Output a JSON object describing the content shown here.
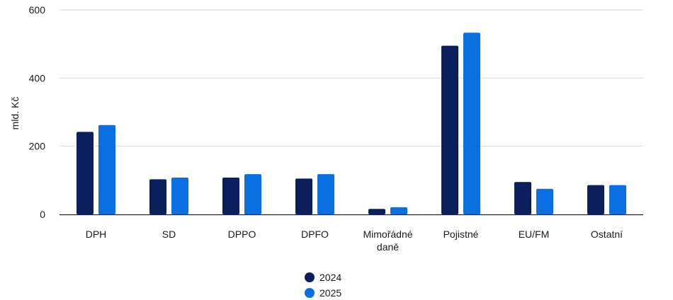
{
  "chart_data": {
    "type": "bar",
    "ylabel": "mld. Kč",
    "ylim": [
      0,
      600
    ],
    "yticks": [
      0,
      200,
      400,
      600
    ],
    "grid": true,
    "legend_position": "bottom-center",
    "categories": [
      [
        "DPH"
      ],
      [
        "SD"
      ],
      [
        "DPPO"
      ],
      [
        "DPFO"
      ],
      [
        "Mimořádné",
        "daně"
      ],
      [
        "Pojistné"
      ],
      [
        "EU/FM"
      ],
      [
        "Ostatní"
      ]
    ],
    "series": [
      {
        "name": "2024",
        "color": "#0a1f5c",
        "values": [
          242,
          103,
          108,
          105,
          16,
          495,
          95,
          86
        ]
      },
      {
        "name": "2025",
        "color": "#0a6fe0",
        "values": [
          262,
          108,
          118,
          118,
          21,
          533,
          75,
          86
        ]
      }
    ]
  }
}
